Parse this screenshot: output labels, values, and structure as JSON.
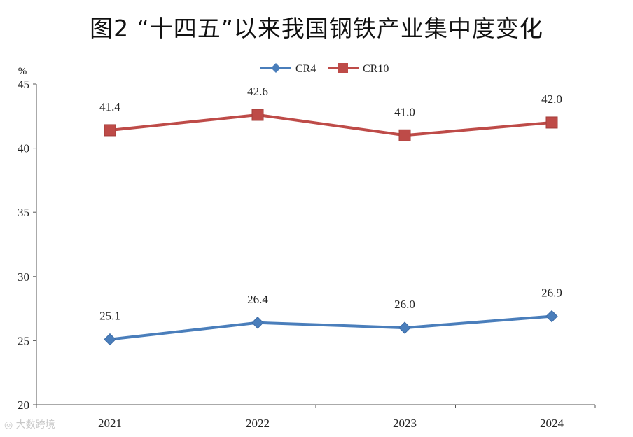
{
  "chart_data": {
    "type": "line",
    "title": "图2 “十四五”以来我国钢铁产业集中度变化",
    "ylabel": "%",
    "xlabel": "",
    "categories": [
      "2021",
      "2022",
      "2023",
      "2024"
    ],
    "ylim": [
      20,
      45
    ],
    "yticks": [
      20,
      25,
      30,
      35,
      40,
      45
    ],
    "grid": false,
    "legend_position": "top-center",
    "series": [
      {
        "name": "CR4",
        "values": [
          25.1,
          26.4,
          26.0,
          26.9
        ],
        "labels": [
          "25.1",
          "26.4",
          "26.0",
          "26.9"
        ],
        "color": "#4a7ebb",
        "marker": "diamond"
      },
      {
        "name": "CR10",
        "values": [
          41.4,
          42.6,
          41.0,
          42.0
        ],
        "labels": [
          "41.4",
          "42.6",
          "41.0",
          "42.0"
        ],
        "color": "#be4b48",
        "marker": "square"
      }
    ]
  },
  "watermark": "大数跨境"
}
